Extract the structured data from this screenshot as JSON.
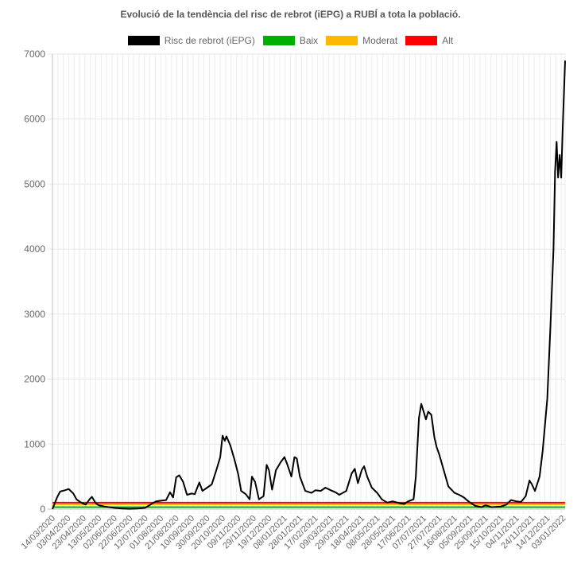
{
  "chart_data": {
    "type": "line",
    "title": "Evolució de la tendència del risc de rebrot (iEPG) a RUBÍ a tota la població.",
    "xlabel": "",
    "ylabel": "",
    "ylim": [
      0,
      7000
    ],
    "yticks": [
      "0",
      "1000",
      "2000",
      "3000",
      "4000",
      "5000",
      "6000",
      "7000"
    ],
    "grid": true,
    "legend_position": "top",
    "x_tick_labels": [
      "14/03/2020",
      "03/04/2020",
      "23/04/2020",
      "13/05/2020",
      "02/06/2020",
      "22/06/2020",
      "12/07/2020",
      "01/08/2020",
      "21/08/2020",
      "10/09/2020",
      "30/09/2020",
      "20/10/2020",
      "09/11/2020",
      "29/11/2020",
      "19/12/2020",
      "08/01/2021",
      "28/01/2021",
      "17/02/2021",
      "09/03/2021",
      "29/03/2021",
      "18/04/2021",
      "08/05/2021",
      "28/05/2021",
      "17/06/2021",
      "07/07/2021",
      "27/07/2021",
      "16/08/2021",
      "05/09/2021",
      "25/09/2021",
      "15/10/2021",
      "04/11/2021",
      "24/11/2021",
      "14/12/2021",
      "03/01/2022"
    ],
    "x_domain": [
      "14/03/2020",
      "06/01/2022"
    ],
    "series": [
      {
        "name": "Risc de rebrot (iEPG)",
        "color": "#000000",
        "points": [
          [
            "14/03/2020",
            0
          ],
          [
            "20/03/2020",
            180
          ],
          [
            "24/03/2020",
            270
          ],
          [
            "30/03/2020",
            290
          ],
          [
            "04/04/2020",
            310
          ],
          [
            "10/04/2020",
            240
          ],
          [
            "14/04/2020",
            150
          ],
          [
            "20/04/2020",
            100
          ],
          [
            "26/04/2020",
            70
          ],
          [
            "01/05/2020",
            150
          ],
          [
            "04/05/2020",
            190
          ],
          [
            "09/05/2020",
            90
          ],
          [
            "13/05/2020",
            60
          ],
          [
            "20/05/2020",
            40
          ],
          [
            "02/06/2020",
            20
          ],
          [
            "12/06/2020",
            10
          ],
          [
            "22/06/2020",
            5
          ],
          [
            "02/07/2020",
            10
          ],
          [
            "12/07/2020",
            20
          ],
          [
            "20/07/2020",
            80
          ],
          [
            "26/07/2020",
            120
          ],
          [
            "01/08/2020",
            130
          ],
          [
            "08/08/2020",
            140
          ],
          [
            "13/08/2020",
            260
          ],
          [
            "17/08/2020",
            180
          ],
          [
            "21/08/2020",
            490
          ],
          [
            "25/08/2020",
            520
          ],
          [
            "30/08/2020",
            420
          ],
          [
            "04/09/2020",
            220
          ],
          [
            "10/09/2020",
            240
          ],
          [
            "14/09/2020",
            230
          ],
          [
            "20/09/2020",
            410
          ],
          [
            "24/09/2020",
            280
          ],
          [
            "30/09/2020",
            330
          ],
          [
            "06/10/2020",
            380
          ],
          [
            "12/10/2020",
            600
          ],
          [
            "17/10/2020",
            800
          ],
          [
            "20/10/2020",
            1130
          ],
          [
            "23/10/2020",
            1050
          ],
          [
            "25/10/2020",
            1120
          ],
          [
            "30/10/2020",
            980
          ],
          [
            "04/11/2020",
            780
          ],
          [
            "09/11/2020",
            550
          ],
          [
            "13/11/2020",
            280
          ],
          [
            "19/11/2020",
            230
          ],
          [
            "24/11/2020",
            150
          ],
          [
            "27/11/2020",
            500
          ],
          [
            "01/12/2020",
            420
          ],
          [
            "06/12/2020",
            150
          ],
          [
            "12/12/2020",
            200
          ],
          [
            "16/12/2020",
            680
          ],
          [
            "19/12/2020",
            600
          ],
          [
            "23/12/2020",
            300
          ],
          [
            "28/12/2020",
            600
          ],
          [
            "03/01/2021",
            720
          ],
          [
            "08/01/2021",
            800
          ],
          [
            "12/01/2021",
            680
          ],
          [
            "17/01/2021",
            500
          ],
          [
            "21/01/2021",
            800
          ],
          [
            "24/01/2021",
            780
          ],
          [
            "28/01/2021",
            500
          ],
          [
            "04/02/2021",
            280
          ],
          [
            "12/02/2021",
            250
          ],
          [
            "17/02/2021",
            290
          ],
          [
            "24/02/2021",
            280
          ],
          [
            "02/03/2021",
            330
          ],
          [
            "09/03/2021",
            290
          ],
          [
            "15/03/2021",
            260
          ],
          [
            "20/03/2021",
            220
          ],
          [
            "29/03/2021",
            280
          ],
          [
            "05/04/2021",
            550
          ],
          [
            "09/04/2021",
            620
          ],
          [
            "13/04/2021",
            400
          ],
          [
            "18/04/2021",
            600
          ],
          [
            "21/04/2021",
            660
          ],
          [
            "25/04/2021",
            500
          ],
          [
            "01/05/2021",
            330
          ],
          [
            "08/05/2021",
            250
          ],
          [
            "14/05/2021",
            150
          ],
          [
            "21/05/2021",
            100
          ],
          [
            "28/05/2021",
            120
          ],
          [
            "06/06/2021",
            90
          ],
          [
            "12/06/2021",
            80
          ],
          [
            "17/06/2021",
            120
          ],
          [
            "24/06/2021",
            150
          ],
          [
            "27/06/2021",
            500
          ],
          [
            "01/07/2021",
            1400
          ],
          [
            "04/07/2021",
            1620
          ],
          [
            "07/07/2021",
            1500
          ],
          [
            "10/07/2021",
            1380
          ],
          [
            "13/07/2021",
            1500
          ],
          [
            "17/07/2021",
            1450
          ],
          [
            "21/07/2021",
            1100
          ],
          [
            "24/07/2021",
            950
          ],
          [
            "27/07/2021",
            850
          ],
          [
            "02/08/2021",
            600
          ],
          [
            "08/08/2021",
            350
          ],
          [
            "16/08/2021",
            250
          ],
          [
            "22/08/2021",
            220
          ],
          [
            "28/08/2021",
            180
          ],
          [
            "05/09/2021",
            100
          ],
          [
            "12/09/2021",
            50
          ],
          [
            "20/09/2021",
            30
          ],
          [
            "25/09/2021",
            60
          ],
          [
            "03/10/2021",
            30
          ],
          [
            "15/10/2021",
            40
          ],
          [
            "22/10/2021",
            70
          ],
          [
            "28/10/2021",
            140
          ],
          [
            "04/11/2021",
            120
          ],
          [
            "10/11/2021",
            110
          ],
          [
            "16/11/2021",
            200
          ],
          [
            "21/11/2021",
            440
          ],
          [
            "24/11/2021",
            380
          ],
          [
            "28/11/2021",
            280
          ],
          [
            "04/12/2021",
            500
          ],
          [
            "08/12/2021",
            900
          ],
          [
            "11/12/2021",
            1300
          ],
          [
            "14/12/2021",
            1700
          ],
          [
            "18/12/2021",
            2800
          ],
          [
            "22/12/2021",
            4000
          ],
          [
            "24/12/2021",
            5200
          ],
          [
            "26/12/2021",
            5650
          ],
          [
            "28/12/2021",
            5100
          ],
          [
            "30/12/2021",
            5450
          ],
          [
            "01/01/2022",
            5100
          ],
          [
            "03/01/2022",
            5900
          ],
          [
            "06/01/2022",
            6900
          ]
        ]
      },
      {
        "name": "Baix",
        "color": "#00b000",
        "constant": 30
      },
      {
        "name": "Moderat",
        "color": "#ffb800",
        "constant": 70
      },
      {
        "name": "Alt",
        "color": "#ff0000",
        "constant": 100
      }
    ]
  }
}
